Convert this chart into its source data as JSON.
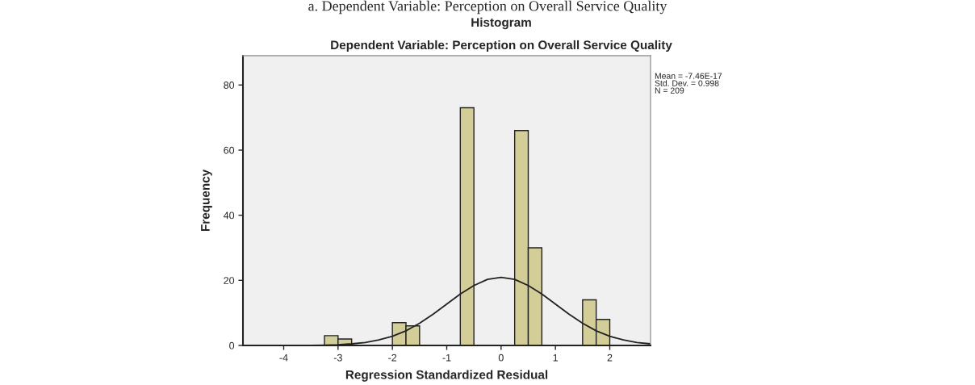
{
  "chart_data": {
    "type": "histogram",
    "title": "Histogram",
    "subtitle": "Dependent Variable: Perception on Overall Service Quality",
    "xlabel": "Regression Standardized Residual",
    "ylabel": "Frequency",
    "bins": [
      -3.25,
      -3.0,
      -2.75,
      -2.5,
      -2.25,
      -2.0,
      -1.75,
      -1.5,
      -1.25,
      -1.0,
      -0.75,
      -0.5,
      -0.25,
      0.0,
      0.25,
      0.5,
      0.75,
      1.0,
      1.25,
      1.5,
      1.75,
      2.0
    ],
    "values": [
      3,
      2,
      0,
      0,
      0,
      7,
      6,
      0,
      0,
      0,
      73,
      0,
      0,
      0,
      66,
      30,
      0,
      0,
      0,
      14,
      8
    ],
    "color": "#d3ce97",
    "series": [
      {
        "type": "line",
        "color": "#222222",
        "x": [
          -4.75,
          -4.5,
          -4.25,
          -4.0,
          -3.75,
          -3.5,
          -3.25,
          -3.0,
          -2.75,
          -2.5,
          -2.25,
          -2.0,
          -1.75,
          -1.5,
          -1.25,
          -1.0,
          -0.75,
          -0.5,
          -0.25,
          0.0,
          0.25,
          0.5,
          0.75,
          1.0,
          1.25,
          1.5,
          1.75,
          2.0,
          2.25,
          2.5,
          2.75
        ],
        "values": [
          0.0,
          0.0,
          0.0,
          0.0,
          0.0,
          0.0,
          0.1,
          0.2,
          0.5,
          0.9,
          1.7,
          2.8,
          4.5,
          6.8,
          9.6,
          12.7,
          15.8,
          18.4,
          20.3,
          20.9,
          20.3,
          18.4,
          15.8,
          12.7,
          9.6,
          6.8,
          4.5,
          2.8,
          1.7,
          0.9,
          0.5
        ]
      }
    ],
    "xlim": [
      -4.75,
      2.75
    ],
    "ylim": [
      0,
      89
    ],
    "xticks": [
      -4,
      -3,
      -2,
      -1,
      0,
      1,
      2
    ],
    "yticks": [
      0,
      20,
      40,
      60,
      80
    ],
    "grid": false,
    "legend": false,
    "annotations": [
      "a. Dependent Variable: Perception on Overall Service Quality",
      "Mean = -7.46E-17",
      "Std. Dev. = 0.998",
      "N = 209"
    ]
  }
}
